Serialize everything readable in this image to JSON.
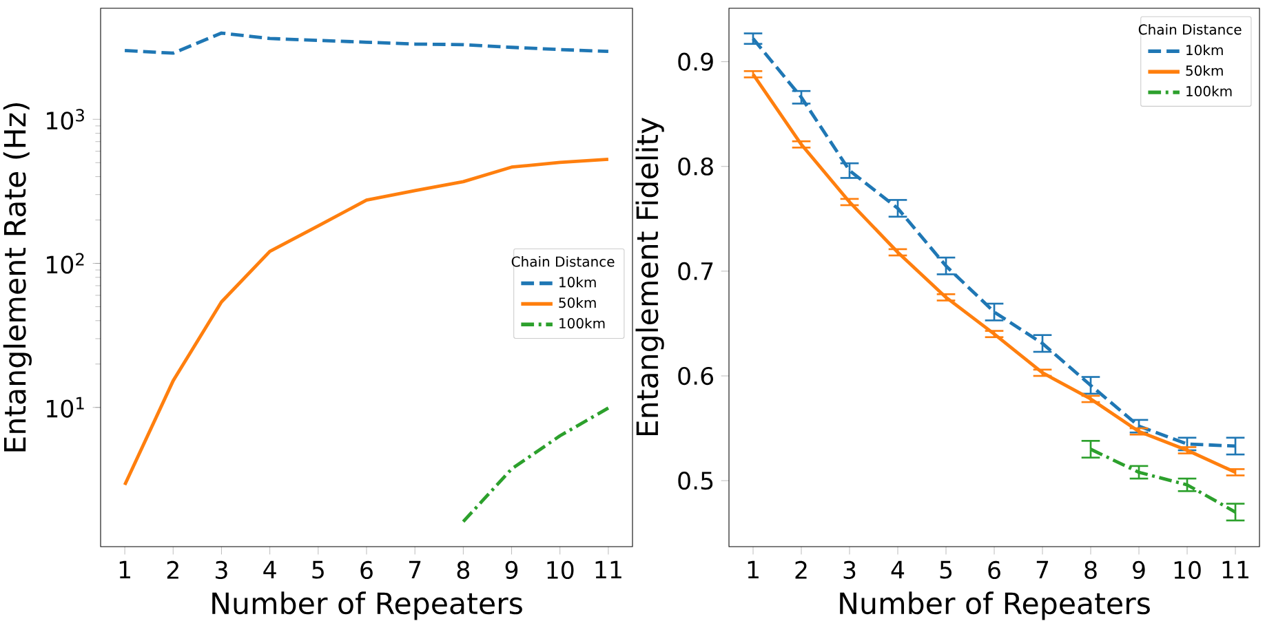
{
  "chart_data": [
    {
      "type": "line",
      "xlabel": "Number of Repeaters",
      "ylabel": "Entanglement Rate (Hz)",
      "log": "y",
      "legend": "right",
      "legend_title": "Chain Distance",
      "x": [
        1,
        2,
        3,
        4,
        5,
        6,
        7,
        8,
        9,
        10,
        11
      ],
      "xlim": [
        0.5,
        11.5
      ],
      "xticks": [
        1,
        2,
        3,
        4,
        5,
        6,
        7,
        8,
        9,
        10,
        11
      ],
      "ylim": [
        1.08,
        5900
      ],
      "yticks": [
        {
          "value": 10,
          "label": "10$^{1}$"
        },
        {
          "value": 100,
          "label": "10$^{2}$"
        },
        {
          "value": 1000,
          "label": "10$^{3}$"
        }
      ],
      "series": [
        {
          "name": "10km",
          "color": "#1f77b4",
          "line_style": "dashed",
          "values": [
            3000,
            2880,
            3970,
            3640,
            3530,
            3430,
            3330,
            3300,
            3160,
            3050,
            2960
          ]
        },
        {
          "name": "50km",
          "color": "#ff7f0e",
          "line_style": "solid",
          "values": [
            2.9,
            15.3,
            54,
            121,
            182,
            275,
            320,
            369,
            466,
            502,
            528
          ]
        },
        {
          "name": "100km",
          "color": "#2ca02c",
          "line_style": "dashdot",
          "values": [
            null,
            null,
            null,
            null,
            null,
            null,
            null,
            1.61,
            3.74,
            6.35,
            9.9
          ]
        }
      ]
    },
    {
      "type": "line",
      "xlabel": "Number of Repeaters",
      "ylabel": "Entanglement Fidelity",
      "legend": "top right",
      "legend_title": "Chain Distance",
      "x": [
        1,
        2,
        3,
        4,
        5,
        6,
        7,
        8,
        9,
        10,
        11
      ],
      "xlim": [
        0.5,
        11.5
      ],
      "xticks": [
        1,
        2,
        3,
        4,
        5,
        6,
        7,
        8,
        9,
        10,
        11
      ],
      "ylim": [
        0.437,
        0.951
      ],
      "yticks": [
        0.5,
        0.6,
        0.7,
        0.8,
        0.9
      ],
      "series": [
        {
          "name": "10km",
          "color": "#1f77b4",
          "line_style": "dashed",
          "values": [
            0.922,
            0.866,
            0.796,
            0.76,
            0.705,
            0.661,
            0.631,
            0.591,
            0.552,
            0.535,
            0.533
          ],
          "errors": [
            0.005,
            0.006,
            0.007,
            0.008,
            0.008,
            0.008,
            0.008,
            0.008,
            0.006,
            0.006,
            0.008
          ]
        },
        {
          "name": "50km",
          "color": "#ff7f0e",
          "line_style": "solid",
          "values": [
            0.888,
            0.821,
            0.766,
            0.718,
            0.675,
            0.64,
            0.603,
            0.578,
            0.547,
            0.529,
            0.508
          ],
          "errors": [
            0.003,
            0.003,
            0.003,
            0.003,
            0.003,
            0.003,
            0.003,
            0.003,
            0.003,
            0.003,
            0.003
          ]
        },
        {
          "name": "100km",
          "color": "#2ca02c",
          "line_style": "dashdot",
          "values": [
            null,
            null,
            null,
            null,
            null,
            null,
            null,
            0.53,
            0.508,
            0.496,
            0.47
          ],
          "errors": [
            null,
            null,
            null,
            null,
            null,
            null,
            null,
            0.008,
            0.006,
            0.006,
            0.008
          ]
        }
      ]
    }
  ]
}
